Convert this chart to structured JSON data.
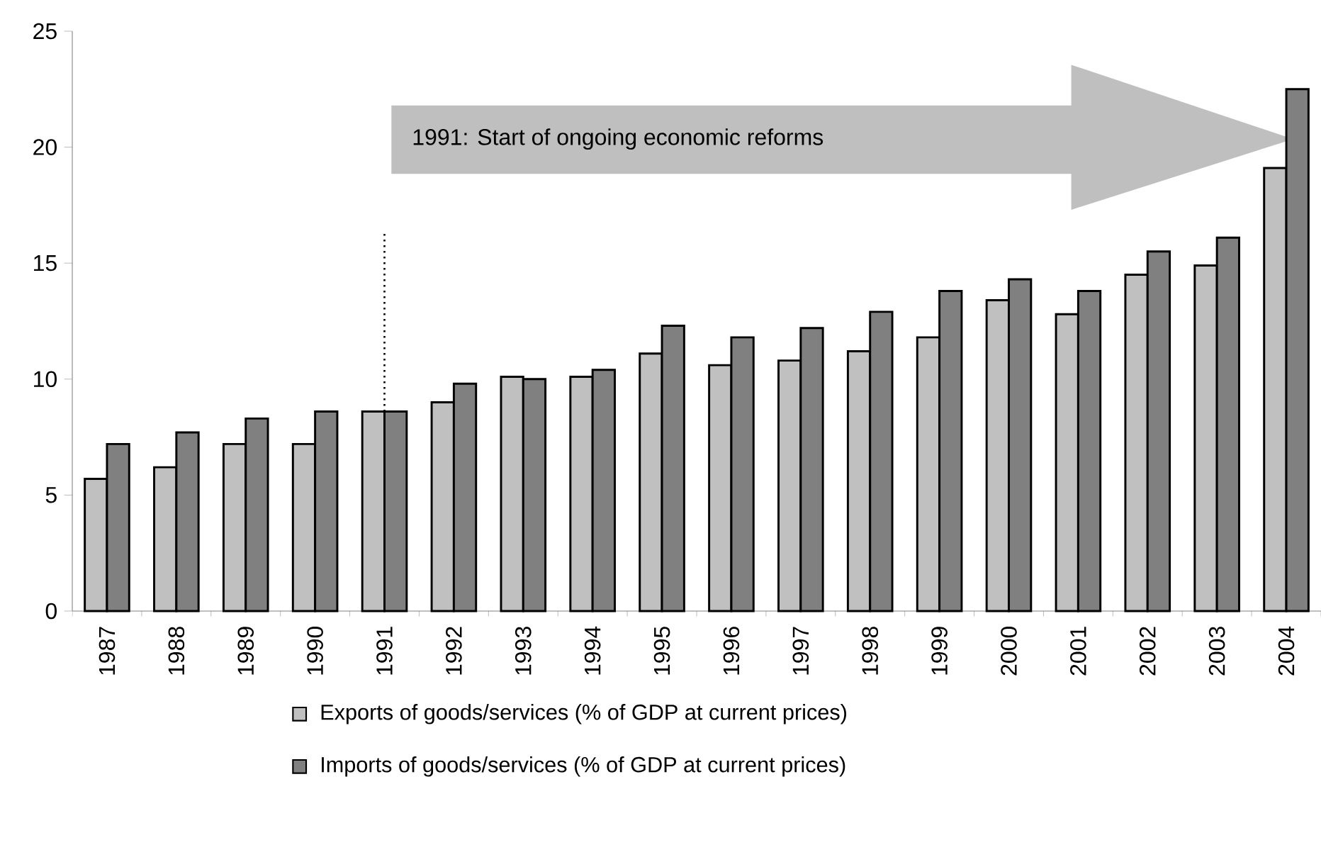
{
  "chart_data": {
    "type": "bar",
    "categories": [
      "1987",
      "1988",
      "1989",
      "1990",
      "1991",
      "1992",
      "1993",
      "1994",
      "1995",
      "1996",
      "1997",
      "1998",
      "1999",
      "2000",
      "2001",
      "2002",
      "2003",
      "2004"
    ],
    "series": [
      {
        "name": "Exports of goods/services (% of GDP at current prices)",
        "color": "#c0c0c0",
        "values": [
          5.7,
          6.2,
          7.2,
          7.2,
          8.6,
          9.0,
          10.1,
          10.1,
          11.1,
          10.6,
          10.8,
          11.2,
          11.8,
          13.4,
          12.8,
          14.5,
          14.9,
          19.1
        ]
      },
      {
        "name": "Imports of goods/services (% of GDP at current prices)",
        "color": "#808080",
        "values": [
          7.2,
          7.7,
          8.3,
          8.6,
          8.6,
          9.8,
          10.0,
          10.4,
          12.3,
          11.8,
          12.2,
          12.9,
          13.8,
          14.3,
          13.8,
          15.5,
          16.1,
          22.5
        ]
      }
    ],
    "ylim": [
      0,
      25
    ],
    "yticks": [
      0,
      5,
      10,
      15,
      20,
      25
    ],
    "ref_lines": [
      {
        "axis": "x",
        "value": "1991",
        "line_style": "dotted",
        "color": "#000000"
      }
    ],
    "annotations": [
      "1991: Start of ongoing economic reforms"
    ],
    "grid": false,
    "legend": "bottom"
  }
}
